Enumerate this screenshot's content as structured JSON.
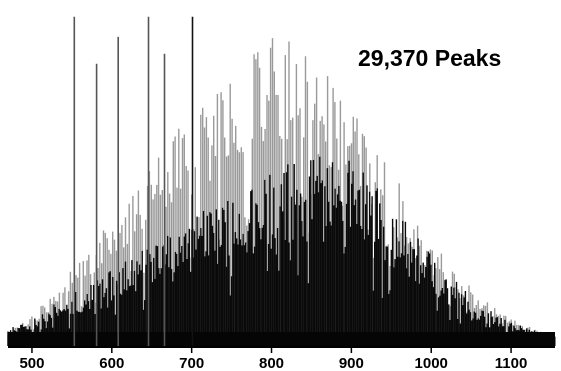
{
  "chart_data": {
    "type": "bar",
    "title": "",
    "annotation": "29,370 Peaks",
    "xlabel": "",
    "ylabel": "",
    "xlim": [
      470,
      1155
    ],
    "ylim": [
      0,
      100
    ],
    "x_ticks": [
      500,
      600,
      700,
      800,
      900,
      1000,
      1100
    ],
    "x_tick_labels": [
      "500",
      "600",
      "700",
      "800",
      "900",
      "1000",
      "1100"
    ],
    "grid": false,
    "legend": "none",
    "series": [
      {
        "color": "#9a9a9a",
        "envelope": [
          [
            470,
            4
          ],
          [
            500,
            9
          ],
          [
            530,
            17
          ],
          [
            560,
            27
          ],
          [
            600,
            37
          ],
          [
            640,
            52
          ],
          [
            680,
            64
          ],
          [
            720,
            74
          ],
          [
            760,
            85
          ],
          [
            800,
            92
          ],
          [
            830,
            91
          ],
          [
            860,
            87
          ],
          [
            900,
            73
          ],
          [
            940,
            58
          ],
          [
            980,
            39
          ],
          [
            1020,
            25
          ],
          [
            1060,
            15
          ],
          [
            1100,
            8
          ],
          [
            1155,
            3
          ]
        ]
      },
      {
        "color": "#0a0a0a",
        "envelope": [
          [
            470,
            5
          ],
          [
            500,
            8
          ],
          [
            550,
            16
          ],
          [
            600,
            23
          ],
          [
            650,
            30
          ],
          [
            700,
            39
          ],
          [
            750,
            45
          ],
          [
            800,
            52
          ],
          [
            850,
            57
          ],
          [
            900,
            55
          ],
          [
            940,
            46
          ],
          [
            980,
            33
          ],
          [
            1020,
            22
          ],
          [
            1060,
            13
          ],
          [
            1100,
            7
          ],
          [
            1155,
            3
          ]
        ]
      }
    ],
    "prominent_peaks": [
      {
        "x": 553,
        "y": 98
      },
      {
        "x": 581,
        "y": 84
      },
      {
        "x": 608,
        "y": 92
      },
      {
        "x": 646,
        "y": 98
      },
      {
        "x": 666,
        "y": 87
      },
      {
        "x": 701,
        "y": 98
      }
    ],
    "style": {
      "axis_color": "#000000"
    }
  }
}
